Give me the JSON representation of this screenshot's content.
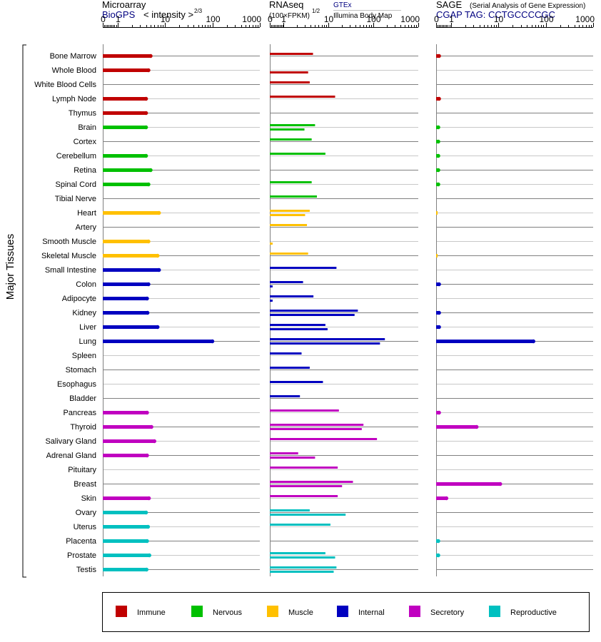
{
  "colors": {
    "Immune": "#c00000",
    "Nervous": "#00c000",
    "Muscle": "#ffc000",
    "Internal": "#0000c0",
    "Secretory": "#c000c0",
    "Reproductive": "#00c0c0"
  },
  "y_axis_label": "Major Tissues",
  "tick_labels": [
    "0",
    "1",
    "10",
    "100",
    "1000"
  ],
  "legend": [
    "Immune",
    "Nervous",
    "Muscle",
    "Internal",
    "Secretory",
    "Reproductive"
  ],
  "panels": {
    "microarray": {
      "title": "Microarray",
      "source": "BioGPS",
      "scale_label": "< intensity >",
      "scale_exp": "2/3"
    },
    "rnaseq": {
      "title": "RNAseq",
      "unit": "(100×FPKM)",
      "unit_exp": "1/2",
      "source1": "GTEx",
      "source2": "Illumina Body Map"
    },
    "sage": {
      "title": "SAGE",
      "subtitle": "(Serial Analysis of Gene Expression)",
      "tag_label": "CGAP  TAG: CCTGCCCCGC"
    }
  },
  "chart_data": {
    "type": "bar",
    "xscale": "log",
    "xlim": [
      0,
      1000
    ],
    "categories": [
      "Bone Marrow",
      "Whole Blood",
      "White Blood Cells",
      "Lymph Node",
      "Thymus",
      "Brain",
      "Cortex",
      "Cerebellum",
      "Retina",
      "Spinal Cord",
      "Tibial Nerve",
      "Heart",
      "Artery",
      "Smooth Muscle",
      "Skeletal Muscle",
      "Small Intestine",
      "Colon",
      "Adipocyte",
      "Kidney",
      "Liver",
      "Lung",
      "Spleen",
      "Stomach",
      "Esophagus",
      "Bladder",
      "Pancreas",
      "Thyroid",
      "Salivary Gland",
      "Adrenal Gland",
      "Pituitary",
      "Breast",
      "Skin",
      "Ovary",
      "Uterus",
      "Placenta",
      "Prostate",
      "Testis"
    ],
    "groups": [
      "Immune",
      "Immune",
      "Immune",
      "Immune",
      "Immune",
      "Nervous",
      "Nervous",
      "Nervous",
      "Nervous",
      "Nervous",
      "Nervous",
      "Muscle",
      "Muscle",
      "Muscle",
      "Muscle",
      "Internal",
      "Internal",
      "Internal",
      "Internal",
      "Internal",
      "Internal",
      "Internal",
      "Internal",
      "Internal",
      "Internal",
      "Secretory",
      "Secretory",
      "Secretory",
      "Secretory",
      "Secretory",
      "Secretory",
      "Secretory",
      "Reproductive",
      "Reproductive",
      "Reproductive",
      "Reproductive",
      "Reproductive"
    ],
    "series": [
      {
        "name": "BioGPS",
        "values": [
          5,
          4.5,
          null,
          4,
          4,
          4,
          null,
          4,
          5,
          4.5,
          null,
          7.5,
          null,
          4.5,
          7,
          7.5,
          4.5,
          4.2,
          4.3,
          7,
          100,
          null,
          null,
          null,
          null,
          4.2,
          5.2,
          6,
          4.2,
          null,
          null,
          4.6,
          4,
          4.4,
          4.2,
          4.7,
          4.1
        ]
      },
      {
        "name": "GTEx",
        "values": [
          4.5,
          null,
          3.8,
          14,
          null,
          5,
          4.2,
          8.5,
          null,
          4.2,
          5.5,
          3.8,
          3.3,
          null,
          3.5,
          15,
          2.7,
          4.6,
          45,
          8.5,
          180,
          2.5,
          3.8,
          7.5,
          2.3,
          17,
          60,
          120,
          2.1,
          16,
          35,
          16,
          3.8,
          11,
          null,
          8.5,
          15
        ]
      },
      {
        "name": "Illumina Body Map",
        "values": [
          null,
          3.5,
          null,
          null,
          null,
          2.9,
          null,
          null,
          null,
          null,
          null,
          3.0,
          null,
          0.2,
          null,
          null,
          0.2,
          0.2,
          38,
          9.5,
          140,
          null,
          null,
          null,
          null,
          null,
          55,
          null,
          5,
          null,
          20,
          null,
          24,
          null,
          null,
          14,
          13
        ]
      },
      {
        "name": "CGAP",
        "values": [
          0.2,
          null,
          null,
          0.2,
          null,
          0.15,
          0.15,
          0.15,
          0.15,
          0.15,
          null,
          0.1,
          null,
          null,
          0.1,
          null,
          0.2,
          null,
          0.2,
          0.2,
          55,
          null,
          null,
          null,
          null,
          0.2,
          3.5,
          null,
          null,
          null,
          11,
          0.7,
          null,
          null,
          0.15,
          0.15,
          null
        ]
      }
    ]
  }
}
